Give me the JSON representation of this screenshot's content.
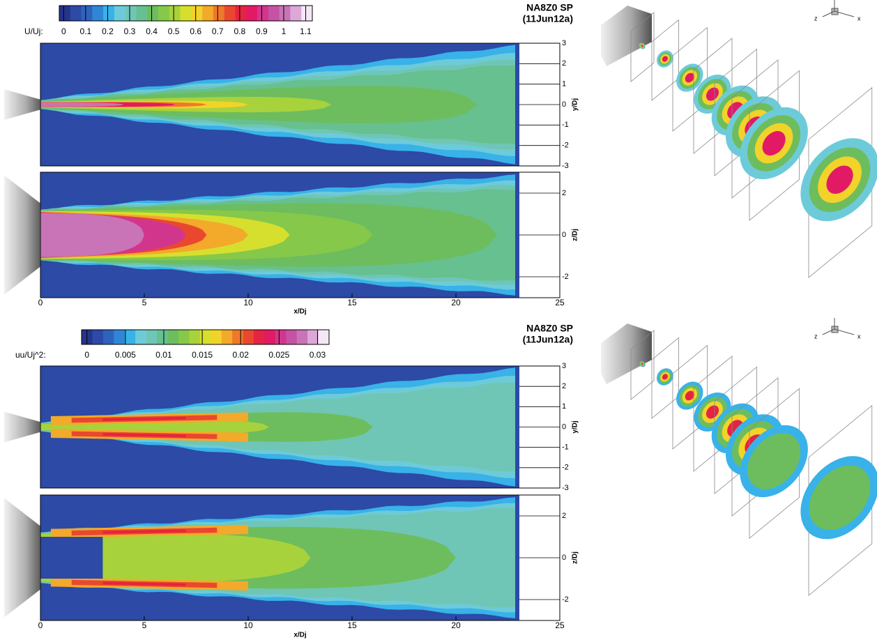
{
  "chart_data": [
    {
      "type": "contour",
      "title": "NA8Z0 SP",
      "subtitle": "(11Jun12a)",
      "colorbar": {
        "label": "U/Uj:",
        "lim": [
          -0.02,
          1.13
        ],
        "ticks": [
          0,
          0.1,
          0.2,
          0.3,
          0.4,
          0.5,
          0.6,
          0.7,
          0.8,
          0.9,
          1,
          1.1
        ],
        "colors": [
          "#26358a",
          "#2c4aa6",
          "#2f62bd",
          "#2f86d6",
          "#38b2e8",
          "#6dcbd9",
          "#6fc6b6",
          "#66c08f",
          "#6dbd5e",
          "#85c84a",
          "#a8d23c",
          "#d7df2e",
          "#f2d32a",
          "#f3a92a",
          "#f0782a",
          "#e9482e",
          "#e52342",
          "#e21a66",
          "#d2368c",
          "#c552a4",
          "#c874b6",
          "#dca8d8",
          "#f4e8f4"
        ]
      },
      "plots": [
        {
          "ylabel": "y/Dj",
          "xlim": [
            0,
            25
          ],
          "ylim": [
            -3,
            3
          ],
          "yticks": [
            -3,
            -2,
            -1,
            0,
            1,
            2,
            3
          ]
        },
        {
          "ylabel": "z/Dj",
          "xlabel": "x/Dj",
          "xlim": [
            0,
            25
          ],
          "ylim": [
            -3,
            3
          ],
          "xticks": [
            0,
            5,
            10,
            15,
            20,
            25
          ],
          "yticks": [
            -2,
            0,
            2
          ]
        }
      ],
      "triad": [
        "z",
        "x"
      ]
    },
    {
      "type": "contour",
      "title": "NA8Z0 SP",
      "subtitle": "(11Jun12a)",
      "colorbar": {
        "label": "uu/Uj^2:",
        "lim": [
          -0.0007,
          0.0315
        ],
        "ticks": [
          0,
          0.005,
          0.01,
          0.015,
          0.02,
          0.025,
          0.03
        ],
        "colors": [
          "#26358a",
          "#2c4aa6",
          "#2f62bd",
          "#2f86d6",
          "#38b2e8",
          "#6dcbd9",
          "#6fc6b6",
          "#66c08f",
          "#6dbd5e",
          "#85c84a",
          "#a8d23c",
          "#d7df2e",
          "#f2d32a",
          "#f3a92a",
          "#f0782a",
          "#e9482e",
          "#e52342",
          "#e21a66",
          "#d2368c",
          "#c552a4",
          "#c874b6",
          "#dca8d8",
          "#f4e8f4"
        ]
      },
      "plots": [
        {
          "ylabel": "y/Dj",
          "xlim": [
            0,
            25
          ],
          "ylim": [
            -3,
            3
          ],
          "yticks": [
            -3,
            -2,
            -1,
            0,
            1,
            2,
            3
          ]
        },
        {
          "ylabel": "z/Dj",
          "xlabel": "x/Dj",
          "xlim": [
            0,
            25
          ],
          "ylim": [
            -3,
            3
          ],
          "xticks": [
            0,
            5,
            10,
            15,
            20,
            25
          ],
          "yticks": [
            -2,
            0,
            2
          ]
        }
      ],
      "triad": [
        "z",
        "x"
      ]
    }
  ]
}
